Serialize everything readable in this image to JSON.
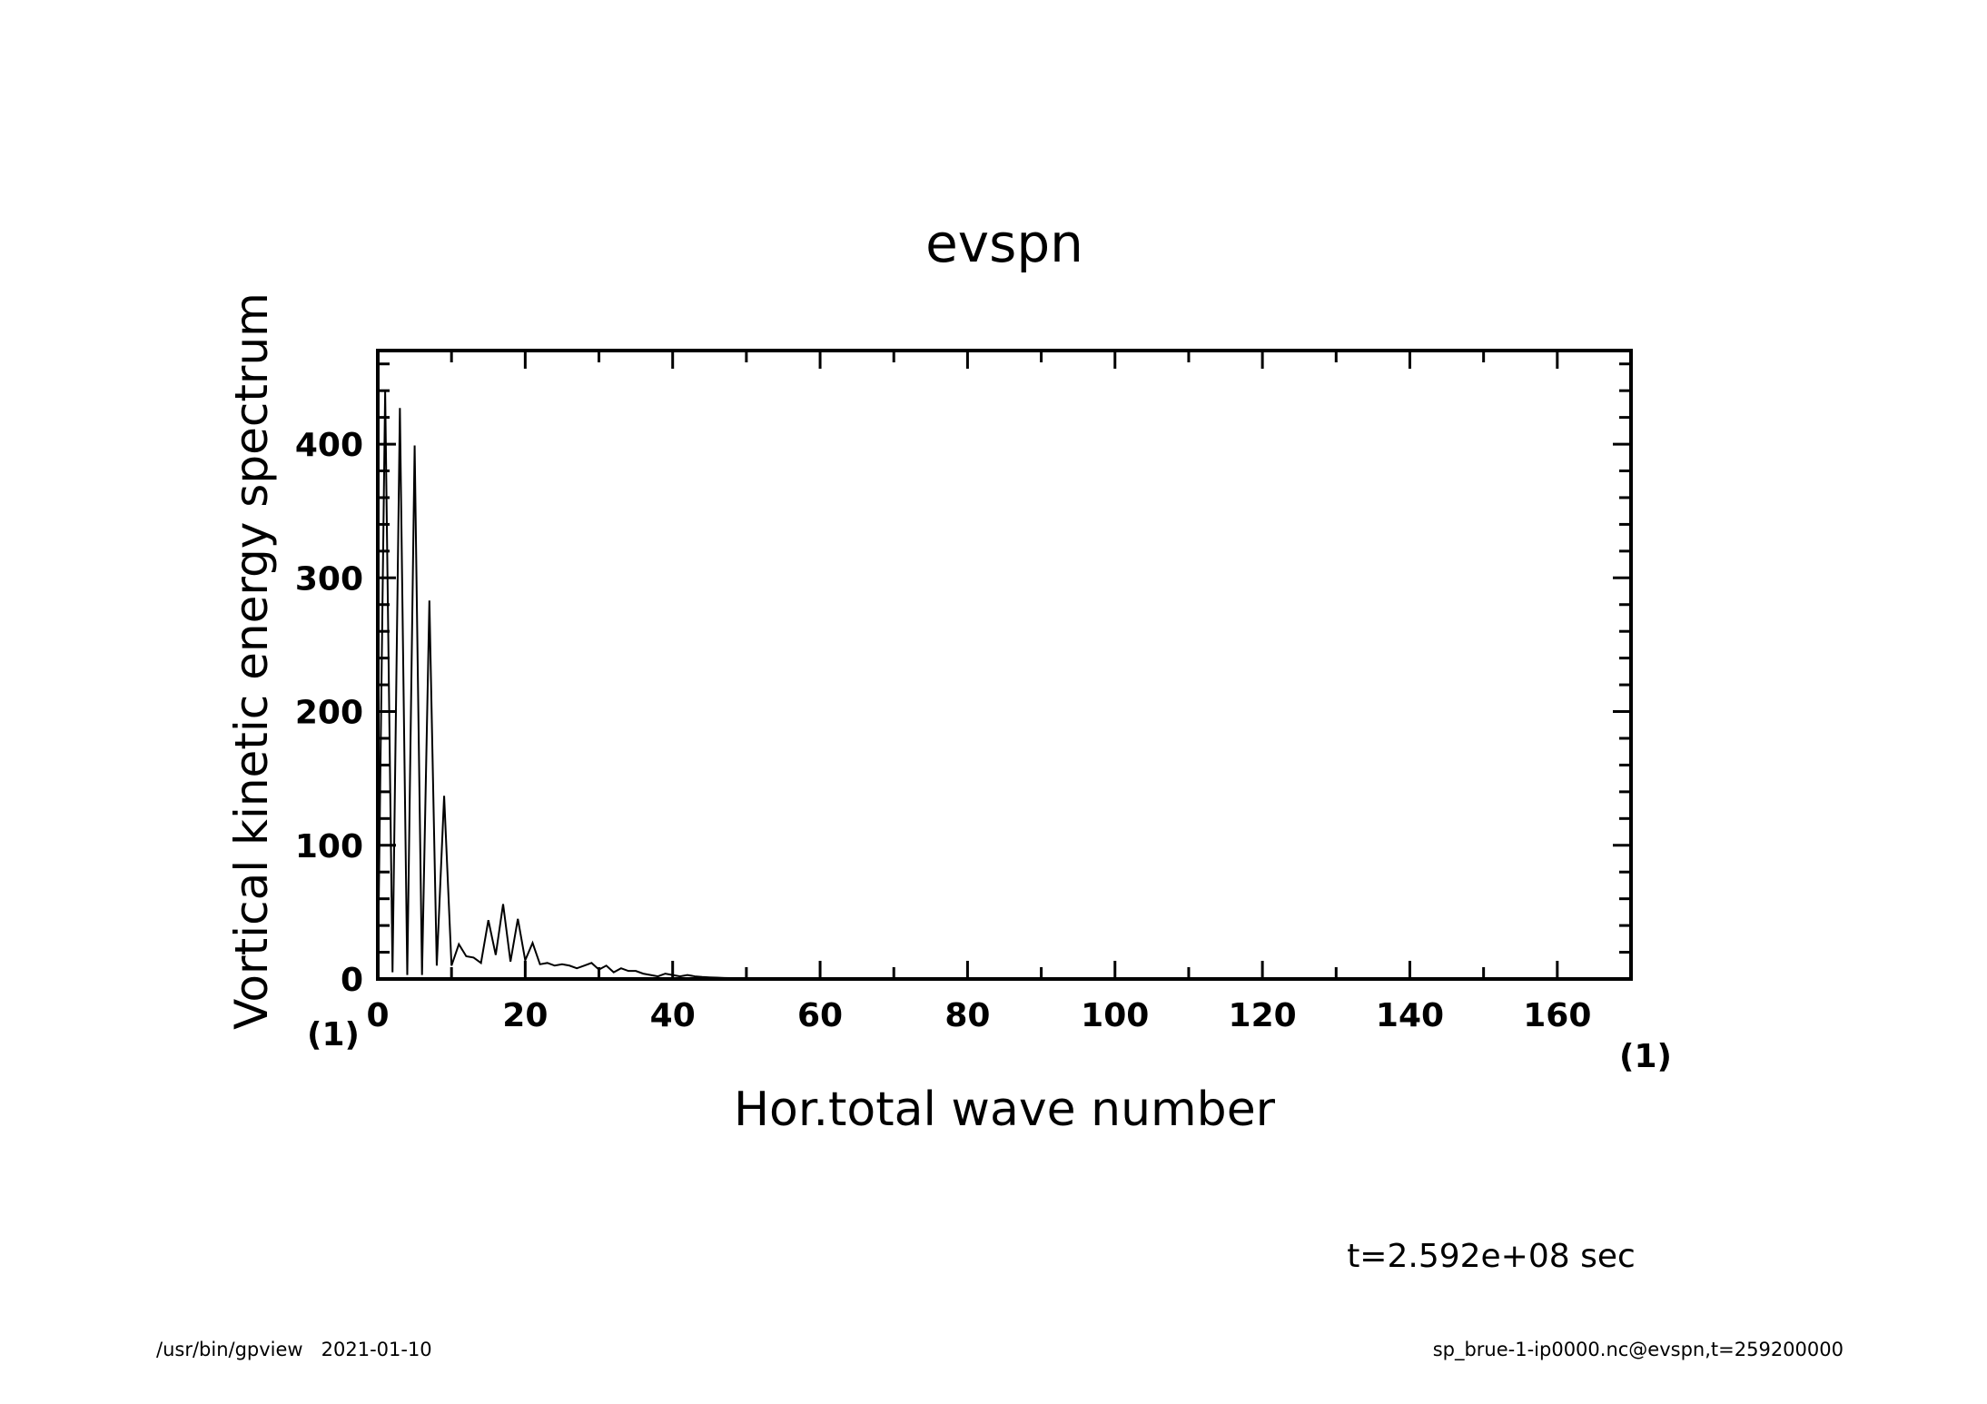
{
  "chart_data": {
    "type": "line",
    "title": "evspn",
    "xlabel": "Hor.total wave number",
    "ylabel": "Vortical kinetic energy spectrum",
    "x_unit": "(1)",
    "y_unit": "(1)",
    "xlim": [
      0,
      170
    ],
    "ylim": [
      0,
      470
    ],
    "x_ticks": [
      0,
      20,
      40,
      60,
      80,
      100,
      120,
      140,
      160
    ],
    "y_ticks": [
      0,
      100,
      200,
      300,
      400
    ],
    "grid": false,
    "series": [
      {
        "x": [
          0,
          1,
          2,
          3,
          4,
          5,
          6,
          7,
          8,
          9,
          10,
          11,
          12,
          13,
          14,
          15,
          16,
          17,
          18,
          19,
          20,
          21,
          22,
          23,
          24,
          25,
          26,
          27,
          28,
          29,
          30,
          31,
          32,
          33,
          34,
          35,
          36,
          37,
          38,
          39,
          40,
          41,
          42,
          43,
          44,
          45,
          46,
          47,
          48,
          49,
          50,
          51,
          52,
          53,
          54,
          55,
          56,
          57,
          58,
          59,
          60,
          65,
          70,
          80,
          90,
          100,
          110,
          120,
          130,
          140,
          150,
          160,
          170
        ],
        "y": [
          0,
          440,
          5,
          427,
          3,
          399,
          3,
          283,
          10,
          137,
          10,
          26,
          17,
          16,
          12,
          44,
          18,
          56,
          13,
          45,
          14,
          27,
          11,
          12,
          10,
          11,
          10,
          8,
          10,
          12,
          7,
          10,
          5,
          8,
          6,
          6,
          4,
          3,
          2,
          4,
          3,
          2,
          3,
          2,
          1.5,
          1.2,
          1,
          0.8,
          0.7,
          0.6,
          0.5,
          0.4,
          0.3,
          0.3,
          0.2,
          0.2,
          0.2,
          0.1,
          0.1,
          0.1,
          0.1,
          0.05,
          0.05,
          0,
          0,
          0,
          0,
          0,
          0,
          0,
          0,
          0,
          0
        ]
      }
    ]
  },
  "time_label": "t=2.592e+08 sec",
  "footer_left": "/usr/bin/gpview   2021-01-10",
  "footer_right": "sp_brue-1-ip0000.nc@evspn,t=259200000"
}
